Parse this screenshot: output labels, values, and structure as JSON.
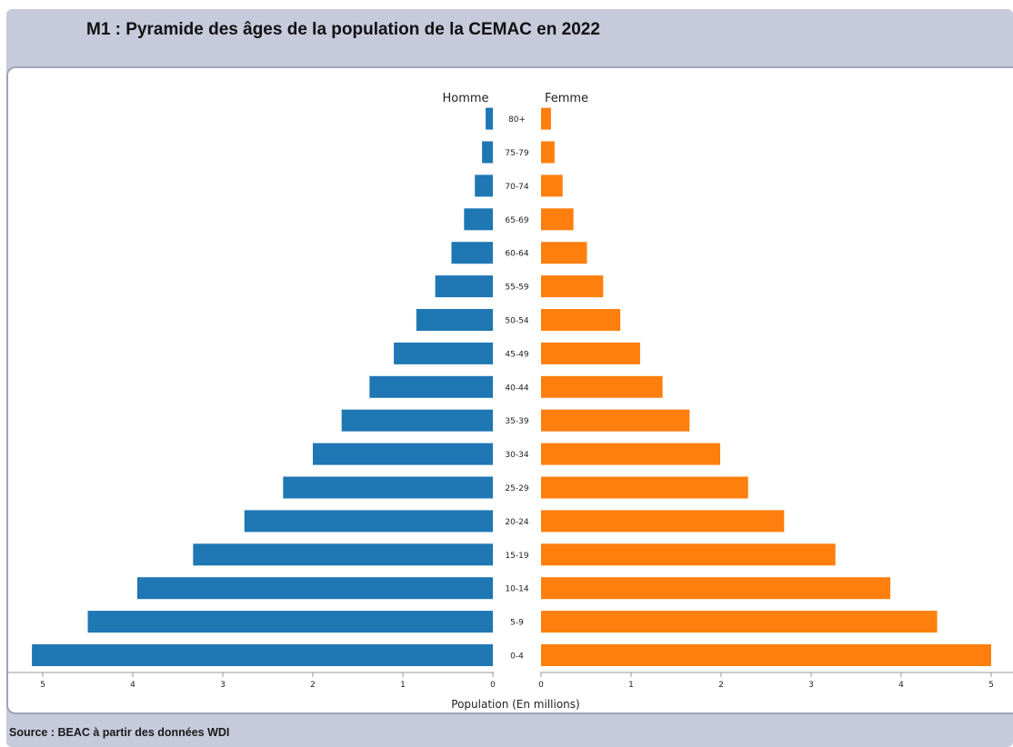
{
  "title": "M1 : Pyramide des âges de la population de la CEMAC en 2022",
  "source": "Source : BEAC à partir des données WDI",
  "chart_data": {
    "type": "bar",
    "orientation": "horizontal",
    "categories": [
      "0-4",
      "5-9",
      "10-14",
      "15-19",
      "20-24",
      "25-29",
      "30-34",
      "35-39",
      "40-44",
      "45-49",
      "50-54",
      "55-59",
      "60-64",
      "65-69",
      "70-74",
      "75-79",
      "80+"
    ],
    "series": [
      {
        "name": "Homme",
        "color": "#1f77b4",
        "values": [
          5.12,
          4.5,
          3.95,
          3.33,
          2.76,
          2.33,
          2.0,
          1.68,
          1.37,
          1.1,
          0.85,
          0.64,
          0.46,
          0.32,
          0.2,
          0.12,
          0.08
        ]
      },
      {
        "name": "Femme",
        "color": "#ff7f0e",
        "values": [
          5.0,
          4.4,
          3.88,
          3.27,
          2.7,
          2.3,
          1.99,
          1.65,
          1.35,
          1.1,
          0.88,
          0.69,
          0.51,
          0.36,
          0.24,
          0.15,
          0.11
        ]
      }
    ],
    "xlabel": "Population (En millions)",
    "xlim": [
      0,
      5
    ],
    "xticks": [
      "0",
      "1",
      "2",
      "3",
      "4",
      "5"
    ],
    "grid": false
  }
}
